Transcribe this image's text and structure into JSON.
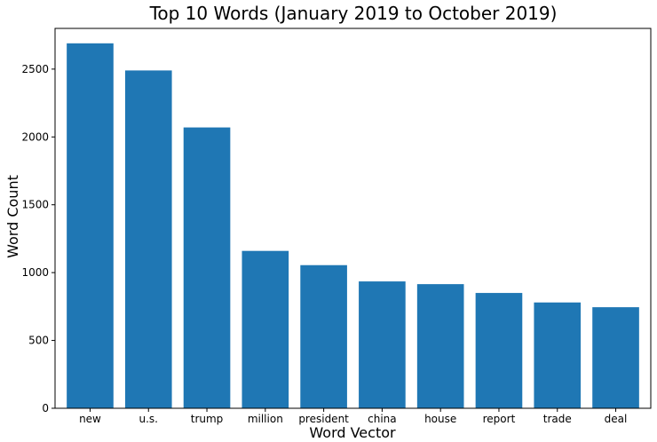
{
  "chart_data": {
    "type": "bar",
    "title": "Top 10 Words (January 2019 to October 2019)",
    "xlabel": "Word Vector",
    "ylabel": "Word Count",
    "categories": [
      "new",
      "u.s.",
      "trump",
      "million",
      "president",
      "china",
      "house",
      "report",
      "trade",
      "deal"
    ],
    "values": [
      2690,
      2490,
      2070,
      1160,
      1055,
      935,
      915,
      850,
      780,
      745
    ],
    "ylim": [
      0,
      2800
    ],
    "yticks": [
      "0",
      "500",
      "1000",
      "1500",
      "2000",
      "2500"
    ],
    "bar_color": "#1f77b4",
    "grid": false
  }
}
